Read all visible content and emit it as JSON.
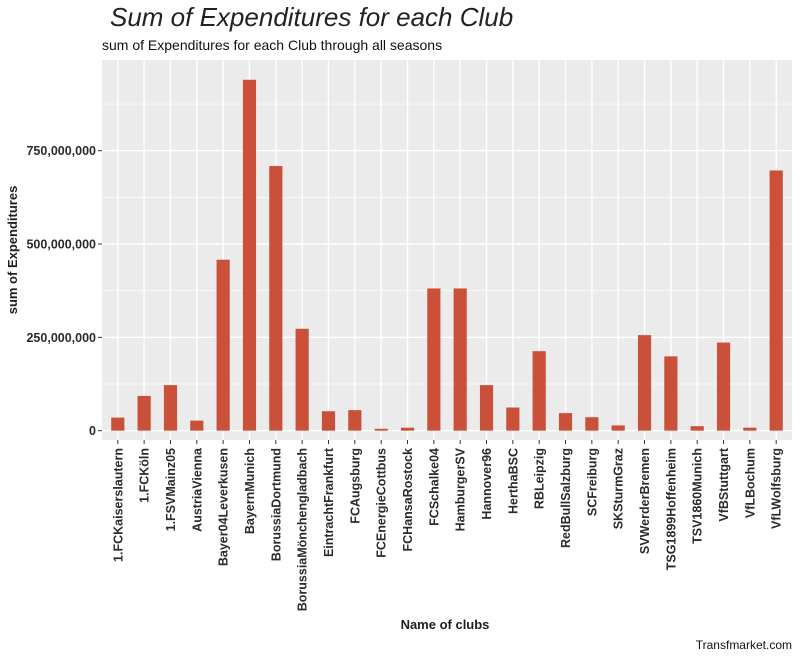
{
  "chart_data": {
    "type": "bar",
    "title": "Sum of Expenditures for each Club",
    "subtitle": "sum of Expenditures for each Club through all seasons",
    "caption": "Transfmarket.com",
    "xlabel": "Name of clubs",
    "ylabel": "sum of Expenditures",
    "categories": [
      "1.FCKaiserslautern",
      "1.FCKöln",
      "1.FSVMainz05",
      "AustriaVienna",
      "Bayer04Leverkusen",
      "BayernMunich",
      "BorussiaDortmund",
      "BorussiaMönchengladbach",
      "EintrachtFrankfurt",
      "FCAugsburg",
      "FCEnergieCottbus",
      "FCHansaRostock",
      "FCSchalke04",
      "HamburgerSV",
      "Hannover96",
      "HerthaBSC",
      "RBLeipzig",
      "RedBullSalzburg",
      "SCFreiburg",
      "SKSturmGraz",
      "SVWerderBremen",
      "TSG1899Hoffenheim",
      "TSV1860Munich",
      "VfBStuttgart",
      "VfLBochum",
      "VfLWolfsburg"
    ],
    "values": [
      35000000,
      93000000,
      122000000,
      27000000,
      458000000,
      940000000,
      709000000,
      273000000,
      52000000,
      55000000,
      5000000,
      8000000,
      381000000,
      381000000,
      122000000,
      62000000,
      213000000,
      47000000,
      36000000,
      14000000,
      256000000,
      199000000,
      12000000,
      236000000,
      8000000,
      697000000
    ],
    "y_ticks": [
      0,
      250000000,
      500000000,
      750000000
    ],
    "y_tick_labels": [
      "0",
      "250,000,000",
      "500,000,000",
      "750,000,000"
    ],
    "ylim": [
      -25000000,
      993000000
    ],
    "grid": true,
    "colors": {
      "bar": "#cb5039",
      "panel": "#ebebeb",
      "gridline": "#ffffff"
    }
  }
}
